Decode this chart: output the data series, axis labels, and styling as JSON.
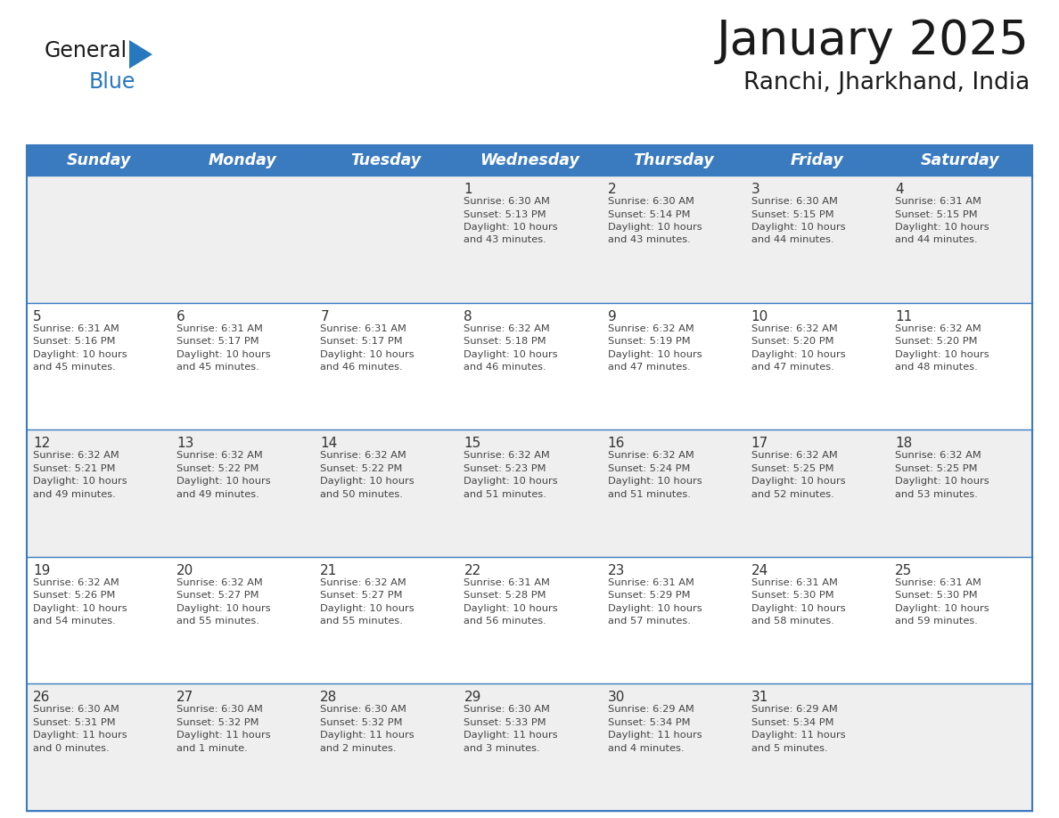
{
  "title": "January 2025",
  "subtitle": "Ranchi, Jharkhand, India",
  "days_of_week": [
    "Sunday",
    "Monday",
    "Tuesday",
    "Wednesday",
    "Thursday",
    "Friday",
    "Saturday"
  ],
  "header_bg": "#3a7abf",
  "header_text": "#ffffff",
  "row_bg_odd": "#efefef",
  "row_bg_even": "#ffffff",
  "border_color": "#3a7abf",
  "day_num_color": "#333333",
  "cell_text_color": "#444444",
  "calendar_data": [
    [
      "",
      "",
      "",
      "1\nSunrise: 6:30 AM\nSunset: 5:13 PM\nDaylight: 10 hours\nand 43 minutes.",
      "2\nSunrise: 6:30 AM\nSunset: 5:14 PM\nDaylight: 10 hours\nand 43 minutes.",
      "3\nSunrise: 6:30 AM\nSunset: 5:15 PM\nDaylight: 10 hours\nand 44 minutes.",
      "4\nSunrise: 6:31 AM\nSunset: 5:15 PM\nDaylight: 10 hours\nand 44 minutes."
    ],
    [
      "5\nSunrise: 6:31 AM\nSunset: 5:16 PM\nDaylight: 10 hours\nand 45 minutes.",
      "6\nSunrise: 6:31 AM\nSunset: 5:17 PM\nDaylight: 10 hours\nand 45 minutes.",
      "7\nSunrise: 6:31 AM\nSunset: 5:17 PM\nDaylight: 10 hours\nand 46 minutes.",
      "8\nSunrise: 6:32 AM\nSunset: 5:18 PM\nDaylight: 10 hours\nand 46 minutes.",
      "9\nSunrise: 6:32 AM\nSunset: 5:19 PM\nDaylight: 10 hours\nand 47 minutes.",
      "10\nSunrise: 6:32 AM\nSunset: 5:20 PM\nDaylight: 10 hours\nand 47 minutes.",
      "11\nSunrise: 6:32 AM\nSunset: 5:20 PM\nDaylight: 10 hours\nand 48 minutes."
    ],
    [
      "12\nSunrise: 6:32 AM\nSunset: 5:21 PM\nDaylight: 10 hours\nand 49 minutes.",
      "13\nSunrise: 6:32 AM\nSunset: 5:22 PM\nDaylight: 10 hours\nand 49 minutes.",
      "14\nSunrise: 6:32 AM\nSunset: 5:22 PM\nDaylight: 10 hours\nand 50 minutes.",
      "15\nSunrise: 6:32 AM\nSunset: 5:23 PM\nDaylight: 10 hours\nand 51 minutes.",
      "16\nSunrise: 6:32 AM\nSunset: 5:24 PM\nDaylight: 10 hours\nand 51 minutes.",
      "17\nSunrise: 6:32 AM\nSunset: 5:25 PM\nDaylight: 10 hours\nand 52 minutes.",
      "18\nSunrise: 6:32 AM\nSunset: 5:25 PM\nDaylight: 10 hours\nand 53 minutes."
    ],
    [
      "19\nSunrise: 6:32 AM\nSunset: 5:26 PM\nDaylight: 10 hours\nand 54 minutes.",
      "20\nSunrise: 6:32 AM\nSunset: 5:27 PM\nDaylight: 10 hours\nand 55 minutes.",
      "21\nSunrise: 6:32 AM\nSunset: 5:27 PM\nDaylight: 10 hours\nand 55 minutes.",
      "22\nSunrise: 6:31 AM\nSunset: 5:28 PM\nDaylight: 10 hours\nand 56 minutes.",
      "23\nSunrise: 6:31 AM\nSunset: 5:29 PM\nDaylight: 10 hours\nand 57 minutes.",
      "24\nSunrise: 6:31 AM\nSunset: 5:30 PM\nDaylight: 10 hours\nand 58 minutes.",
      "25\nSunrise: 6:31 AM\nSunset: 5:30 PM\nDaylight: 10 hours\nand 59 minutes."
    ],
    [
      "26\nSunrise: 6:30 AM\nSunset: 5:31 PM\nDaylight: 11 hours\nand 0 minutes.",
      "27\nSunrise: 6:30 AM\nSunset: 5:32 PM\nDaylight: 11 hours\nand 1 minute.",
      "28\nSunrise: 6:30 AM\nSunset: 5:32 PM\nDaylight: 11 hours\nand 2 minutes.",
      "29\nSunrise: 6:30 AM\nSunset: 5:33 PM\nDaylight: 11 hours\nand 3 minutes.",
      "30\nSunrise: 6:29 AM\nSunset: 5:34 PM\nDaylight: 11 hours\nand 4 minutes.",
      "31\nSunrise: 6:29 AM\nSunset: 5:34 PM\nDaylight: 11 hours\nand 5 minutes.",
      ""
    ]
  ],
  "logo_general_color": "#1a1a1a",
  "logo_blue_color": "#2878be",
  "title_fontsize": 38,
  "subtitle_fontsize": 19,
  "header_fontsize": 12.5,
  "cell_num_fontsize": 11,
  "cell_text_fontsize": 8.2
}
